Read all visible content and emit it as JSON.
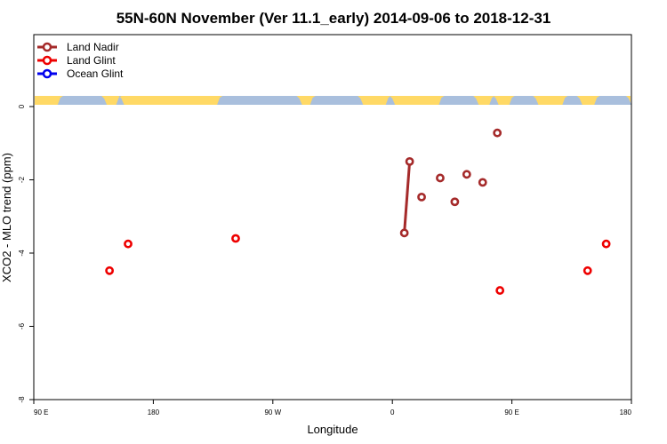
{
  "chart_data": {
    "type": "scatter",
    "title": "55N-60N November (Ver 11.1_early)   2014-09-06 to 2018-12-31",
    "xlabel": "Longitude",
    "ylabel": "XCO2 - MLO trend (ppm)",
    "xlim": [
      90,
      540
    ],
    "ylim": [
      -8,
      2
    ],
    "x_ticks": [
      {
        "value": 90,
        "label": "90 E"
      },
      {
        "value": 180,
        "label": "180"
      },
      {
        "value": 270,
        "label": "90 W"
      },
      {
        "value": 360,
        "label": "0"
      },
      {
        "value": 450,
        "label": "90 E"
      },
      {
        "value": 540,
        "label": "180"
      }
    ],
    "y_ticks": [
      {
        "value": 0,
        "label": "0"
      },
      {
        "value": -2,
        "label": "-2"
      },
      {
        "value": -4,
        "label": "-4"
      },
      {
        "value": -6,
        "label": "-6"
      },
      {
        "value": -8,
        "label": "-8"
      }
    ],
    "legend_position": "top-left",
    "series": [
      {
        "name": "Land Nadir",
        "color": "#a52a2a",
        "points": [
          {
            "x": 369,
            "y": -3.45
          },
          {
            "x": 373,
            "y": -1.5
          },
          {
            "x": 382,
            "y": -2.47
          },
          {
            "x": 396,
            "y": -1.95
          },
          {
            "x": 407,
            "y": -2.6
          },
          {
            "x": 416,
            "y": -1.85
          },
          {
            "x": 428,
            "y": -2.07
          },
          {
            "x": 439,
            "y": -0.72
          }
        ],
        "connected_segments": [
          [
            0,
            1
          ]
        ]
      },
      {
        "name": "Land Glint",
        "color": "#ee0000",
        "points": [
          {
            "x": 147,
            "y": -4.48
          },
          {
            "x": 161,
            "y": -3.75
          },
          {
            "x": 242,
            "y": -3.6
          },
          {
            "x": 441,
            "y": -5.02
          },
          {
            "x": 507,
            "y": -4.48
          },
          {
            "x": 521,
            "y": -3.75
          }
        ],
        "connected_segments": []
      },
      {
        "name": "Ocean Glint",
        "color": "#0000ee",
        "points": [],
        "connected_segments": []
      }
    ],
    "map_strip": {
      "land_color": "#ffd966",
      "ocean_color": "#a9bfdd"
    }
  }
}
